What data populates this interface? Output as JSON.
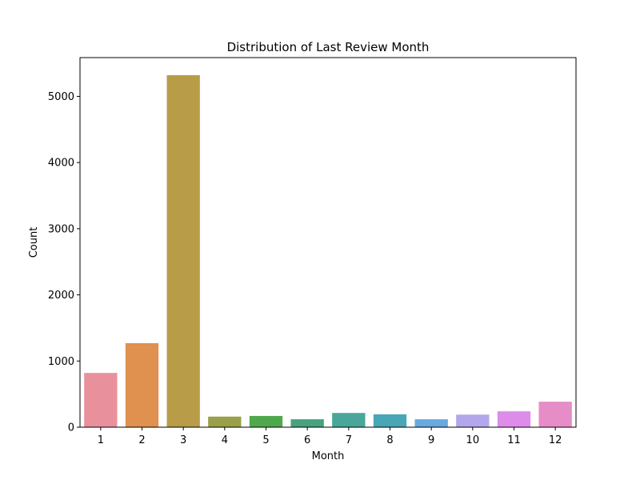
{
  "chart_data": {
    "type": "bar",
    "title": "Distribution of Last Review Month",
    "xlabel": "Month",
    "ylabel": "Count",
    "categories": [
      "1",
      "2",
      "3",
      "4",
      "5",
      "6",
      "7",
      "8",
      "9",
      "10",
      "11",
      "12"
    ],
    "values": [
      820,
      1270,
      5320,
      160,
      170,
      120,
      215,
      195,
      120,
      190,
      240,
      385
    ],
    "colors": [
      "#e8909b",
      "#e0904f",
      "#b89c48",
      "#99a04a",
      "#50a84c",
      "#48a27e",
      "#48a69a",
      "#48a6b6",
      "#6aa8e0",
      "#b4a6ea",
      "#dd8cea",
      "#e68cc6"
    ],
    "yticks": [
      0,
      1000,
      2000,
      3000,
      4000,
      5000
    ],
    "ylim": [
      0,
      5586
    ],
    "grid": false,
    "legend": "none"
  }
}
